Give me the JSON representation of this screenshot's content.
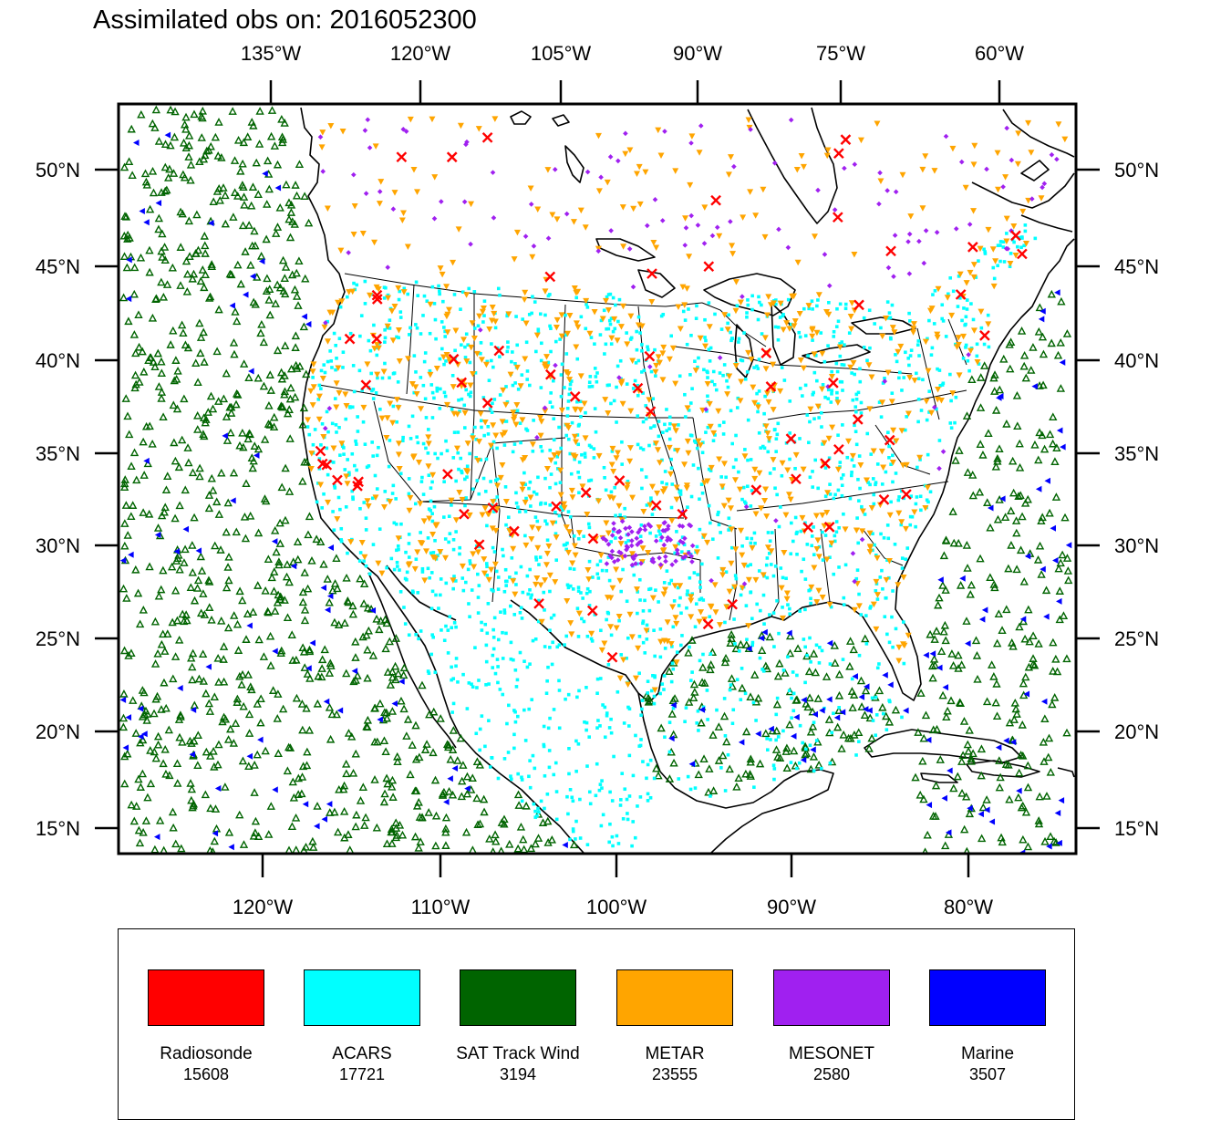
{
  "title": "Assimilated obs on: 2016052300",
  "map": {
    "top_lon_labels": [
      "135°W",
      "120°W",
      "105°W",
      "90°W",
      "75°W",
      "60°W"
    ],
    "bottom_lon_labels": [
      "120°W",
      "110°W",
      "100°W",
      "90°W",
      "80°W"
    ],
    "left_lat_labels": [
      "50°N",
      "45°N",
      "40°N",
      "35°N",
      "30°N",
      "25°N",
      "20°N",
      "15°N"
    ],
    "right_lat_labels": [
      "50°N",
      "45°N",
      "40°N",
      "35°N",
      "30°N",
      "25°N",
      "20°N",
      "15°N"
    ]
  },
  "observation_types": [
    {
      "name": "Radiosonde",
      "count": "15608",
      "color": "#ff0000",
      "marker": "x-cross-icon"
    },
    {
      "name": "ACARS",
      "count": "17721",
      "color": "#00ffff",
      "marker": "square-dot-icon"
    },
    {
      "name": "SAT Track Wind",
      "count": "3194",
      "color": "#006400",
      "marker": "triangle-up-icon"
    },
    {
      "name": "METAR",
      "count": "23555",
      "color": "#ffa500",
      "marker": "triangle-down-icon"
    },
    {
      "name": "MESONET",
      "count": "2580",
      "color": "#a020f0",
      "marker": "diamond-icon"
    },
    {
      "name": "Marine",
      "count": "3507",
      "color": "#0000ff",
      "marker": "triangle-left-icon"
    }
  ]
}
